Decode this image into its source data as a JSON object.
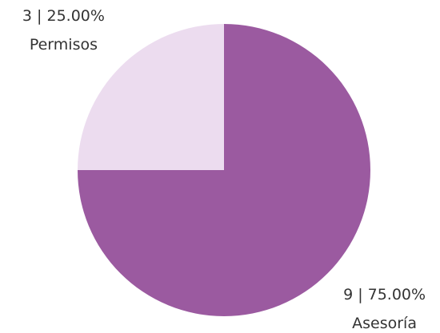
{
  "chart_data": {
    "type": "pie",
    "categories": [
      "Asesoría",
      "Permisos"
    ],
    "values": [
      9,
      3
    ],
    "value_labels": [
      "9 | 75.00%",
      "3 | 25.00%"
    ],
    "colors": [
      "#9b5aa0",
      "#ecdcef"
    ]
  }
}
